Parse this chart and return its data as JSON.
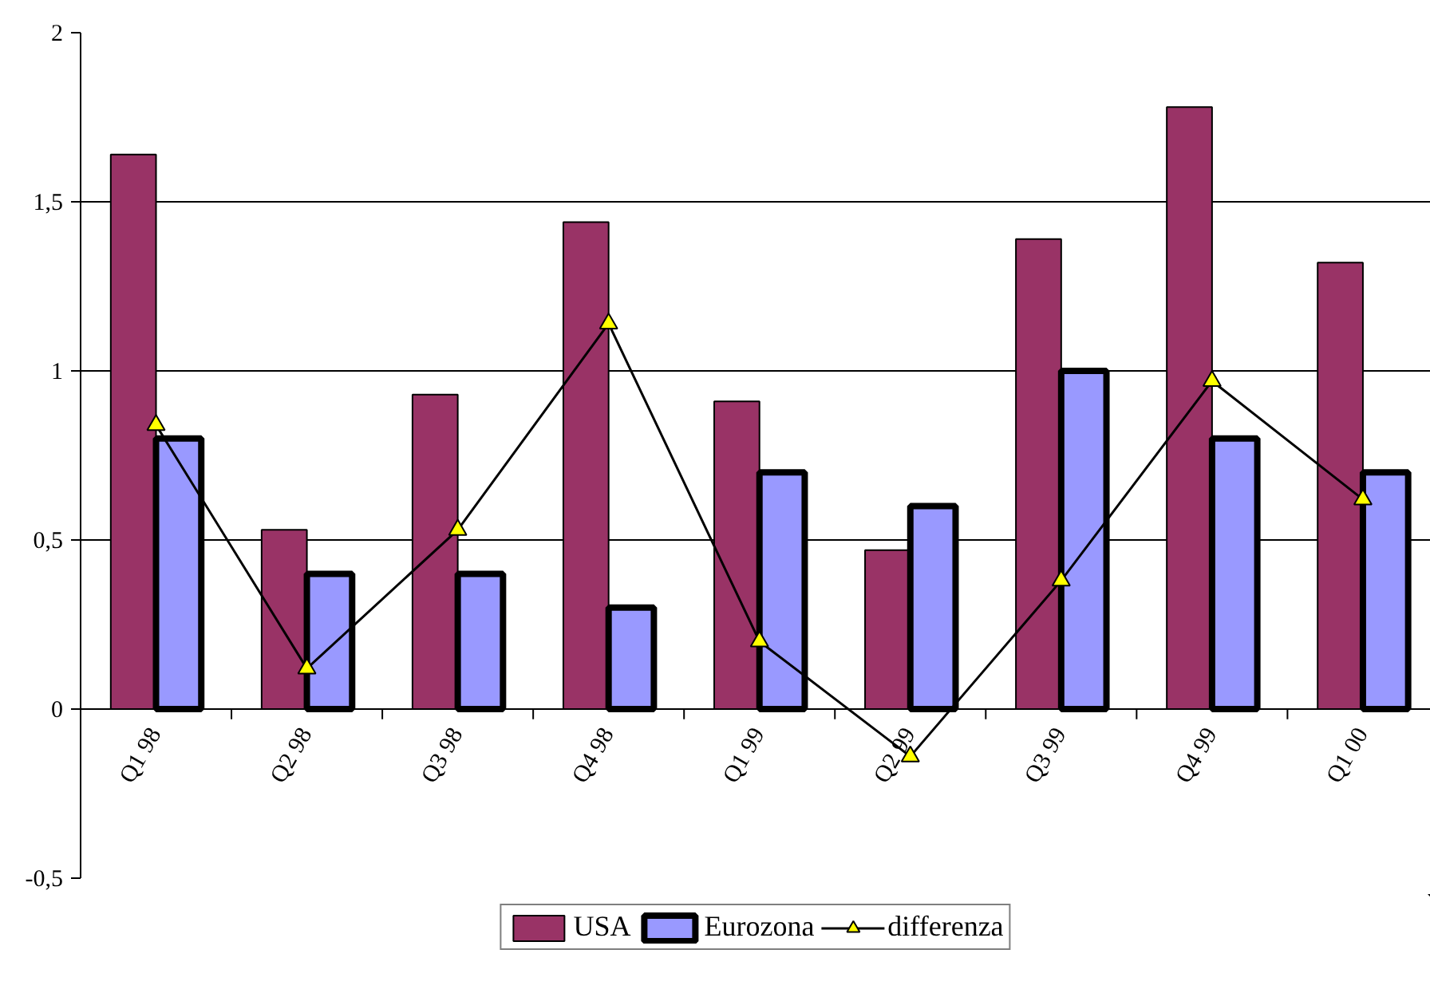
{
  "chart_data": {
    "type": "bar",
    "categories": [
      "Q1 98",
      "Q2 98",
      "Q3 98",
      "Q4 98",
      "Q1 99",
      "Q2 99",
      "Q3 99",
      "Q4 99",
      "Q1 00"
    ],
    "series": [
      {
        "name": "USA",
        "color": "#993366",
        "values": [
          1.64,
          0.53,
          0.93,
          1.44,
          0.91,
          0.47,
          1.39,
          1.78,
          1.32
        ]
      },
      {
        "name": "Eurozona",
        "color": "#9999ff",
        "values": [
          0.8,
          0.4,
          0.4,
          0.3,
          0.7,
          0.6,
          1.0,
          0.8,
          0.7
        ]
      },
      {
        "name": "differenza",
        "type": "line",
        "color": "#000000",
        "marker": "triangle",
        "values": [
          0.84,
          0.12,
          0.53,
          1.14,
          0.2,
          -0.14,
          0.38,
          0.97,
          0.62
        ]
      }
    ],
    "ylim": [
      -0.5,
      2
    ],
    "yticks": [
      {
        "value": -0.5,
        "label": "-0,5"
      },
      0,
      {
        "value": 0.5,
        "label": "0,5"
      },
      1,
      {
        "value": 1.5,
        "label": "1,5"
      },
      2
    ],
    "grid": "y",
    "legend": "bottom"
  }
}
